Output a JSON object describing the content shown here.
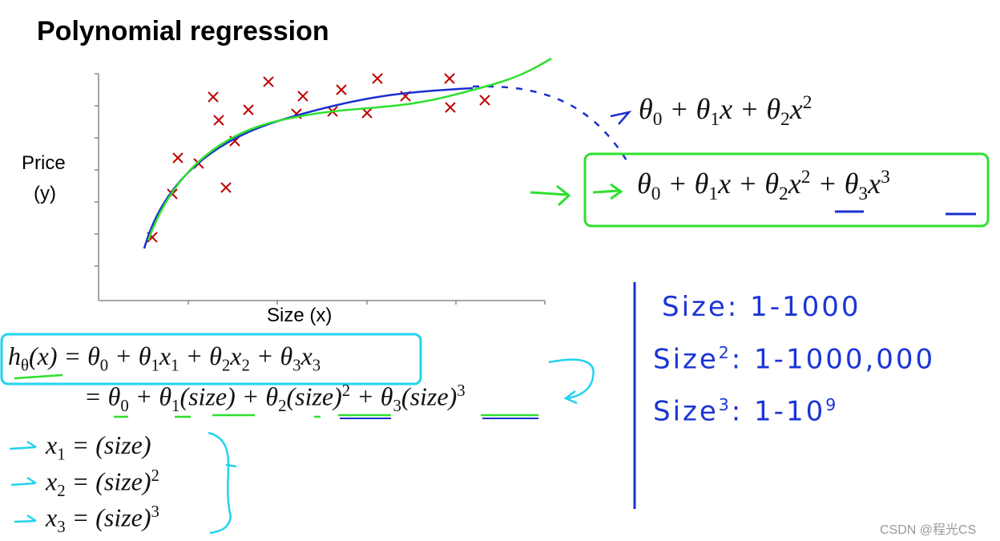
{
  "header": {
    "title": "Polynomial regression"
  },
  "plot": {
    "y_label": [
      "Price",
      "(y)"
    ],
    "x_label": "Size (x)"
  },
  "formulas": {
    "quadratic": [
      "θ",
      "0",
      " + θ",
      "1",
      "x + θ",
      "2",
      "x",
      "2"
    ],
    "cubic": [
      "θ",
      "0",
      " + θ",
      "1",
      "x + θ",
      "2",
      "x",
      "2",
      " + θ",
      "3",
      "x",
      "3"
    ],
    "hypothesis": [
      "h",
      "θ",
      "(x) = θ",
      "0",
      " + θ",
      "1",
      "x",
      "1",
      " + θ",
      "2",
      "x",
      "2",
      " + θ",
      "3",
      "x",
      "3"
    ],
    "expanded": [
      "= θ",
      "0",
      " + θ",
      "1",
      "(size) + θ",
      "2",
      "(size)",
      "2",
      " + θ",
      "3",
      "(size)",
      "3"
    ],
    "features": [
      [
        "x",
        "1",
        " = (size)"
      ],
      [
        "x",
        "2",
        " = (size)",
        "2"
      ],
      [
        "x",
        "3",
        " = (size)",
        "3"
      ]
    ]
  },
  "notes": [
    [
      "Size",
      ": 1-1000"
    ],
    [
      "Size",
      "2",
      ": 1-1000,000"
    ],
    [
      "Size",
      "3",
      ": 1-10",
      "9"
    ]
  ],
  "watermark": "CSDN @程光CS"
}
